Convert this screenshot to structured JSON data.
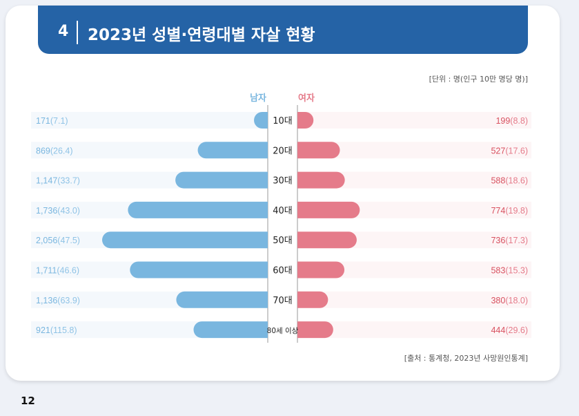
{
  "section": {
    "number": "4",
    "title": "2023년 성별·연령대별 자살 현황"
  },
  "unit_note": "[단위 : 명(인구 10만 명당 명)]",
  "source_note": "[출처 : 통계청, 2023년 사망원인통계]",
  "page_number": "12",
  "colors": {
    "banner": "#2563a6",
    "male": "#79b6df",
    "female": "#e57b8a",
    "male_row_bg": "#f4f8fc",
    "female_row_bg": "#fdf5f6"
  },
  "chart_data": {
    "type": "bar",
    "orientation": "horizontal-butterfly",
    "categories": [
      "10대",
      "20대",
      "30대",
      "40대",
      "50대",
      "60대",
      "70대",
      "80세 이상"
    ],
    "series": [
      {
        "name": "남자",
        "values": [
          171,
          869,
          1147,
          1736,
          2056,
          1711,
          1136,
          921
        ],
        "labels": [
          "171",
          "869",
          "1,147",
          "1,736",
          "2,056",
          "1,711",
          "1,136",
          "921"
        ],
        "rates": [
          "(7.1)",
          "(26.4)",
          "(33.7)",
          "(43.0)",
          "(47.5)",
          "(46.6)",
          "(63.9)",
          "(115.8)"
        ]
      },
      {
        "name": "여자",
        "values": [
          199,
          527,
          588,
          774,
          736,
          583,
          380,
          444
        ],
        "labels": [
          "199",
          "527",
          "588",
          "774",
          "736",
          "583",
          "380",
          "444"
        ],
        "rates": [
          "(8.8)",
          "(17.6)",
          "(18.6)",
          "(19.8)",
          "(17.3)",
          "(15.3)",
          "(18.0)",
          "(29.6)"
        ]
      }
    ],
    "legend": "top-center"
  }
}
